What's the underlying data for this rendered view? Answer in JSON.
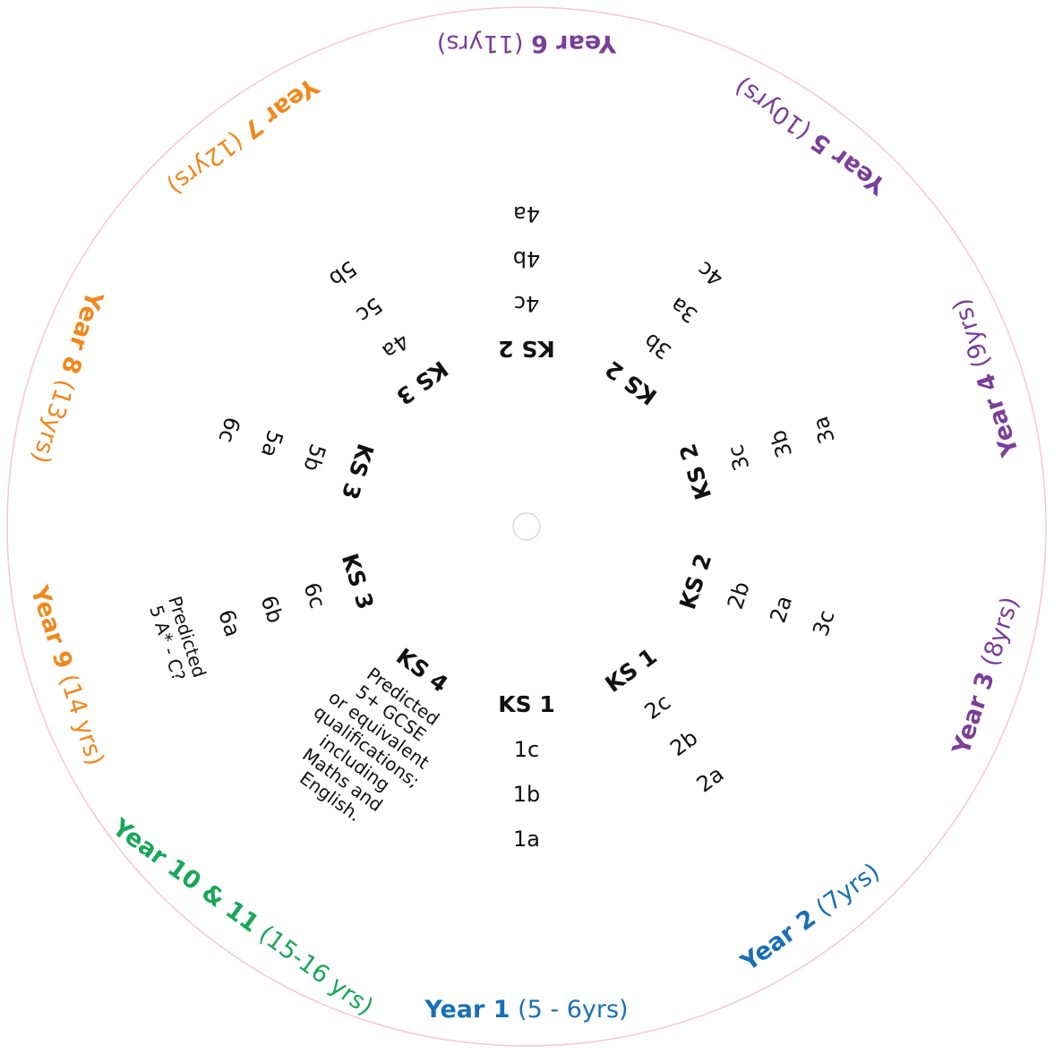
{
  "colors": {
    "blue": "#1a6fb5",
    "purple": "#7b3f98",
    "orange": "#f0881c",
    "green": "#1aa65a",
    "ring": "#f3c8d2"
  },
  "years": [
    {
      "bold": "Year 1",
      "rest": " (5 - 6yrs)",
      "color": "blue"
    },
    {
      "bold": "Year 2",
      "rest": " (7yrs)",
      "color": "blue"
    },
    {
      "bold": "Year 3",
      "rest": " (8yrs)",
      "color": "purple"
    },
    {
      "bold": "Year 4",
      "rest": " (9yrs)",
      "color": "purple"
    },
    {
      "bold": "Year 5",
      "rest": " (10yrs)",
      "color": "purple"
    },
    {
      "bold": "Year 6",
      "rest": " (11yrs)",
      "color": "purple"
    },
    {
      "bold": "Year 7",
      "rest": " (12yrs)",
      "color": "orange"
    },
    {
      "bold": "Year 8",
      "rest": " (13yrs)",
      "color": "orange"
    },
    {
      "bold": "Year 9",
      "rest": " (14 yrs)",
      "color": "orange"
    },
    {
      "bold": "Year 10 & 11",
      "rest": " (15-16 yrs)",
      "color": "green"
    }
  ],
  "spokes": [
    {
      "ks": "KS 1",
      "levels": [
        "1c",
        "1b",
        "1a"
      ]
    },
    {
      "ks": "KS 1",
      "levels": [
        "2c",
        "2b",
        "2a"
      ]
    },
    {
      "ks": "KS 2",
      "levels": [
        "2b",
        "2a",
        "3c"
      ]
    },
    {
      "ks": "KS 2",
      "levels": [
        "3c",
        "3b",
        "3a"
      ]
    },
    {
      "ks": "KS 2",
      "levels": [
        "3b",
        "3a",
        "4c"
      ]
    },
    {
      "ks": "KS 2",
      "levels": [
        "4c",
        "4b",
        "4a"
      ]
    },
    {
      "ks": "KS 3",
      "levels": [
        "4a",
        "5c",
        "5b"
      ]
    },
    {
      "ks": "KS 3",
      "levels": [
        "5b",
        "5a",
        "6c"
      ]
    },
    {
      "ks": "KS 3",
      "levels": [
        "6c",
        "6b",
        "6a"
      ],
      "note": [
        "Predicted",
        "5 A* - C?"
      ]
    },
    {
      "ks": "KS 4",
      "note": [
        "Predicted",
        "5+ GCSE",
        "or equivalent",
        "qualifications;",
        "including",
        "Maths and",
        "English."
      ]
    }
  ]
}
